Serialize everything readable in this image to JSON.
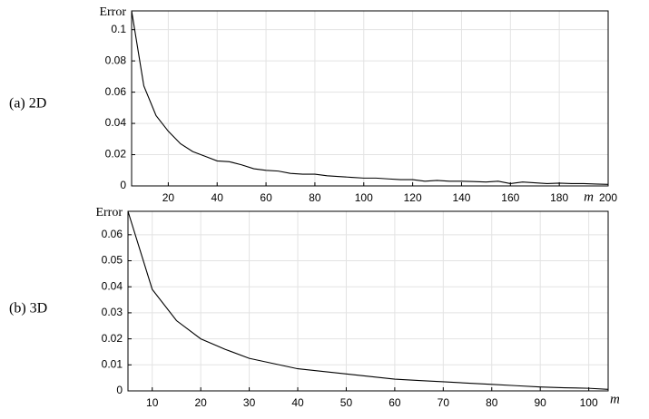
{
  "chart_data": [
    {
      "type": "line",
      "panel_label": "(a) 2D",
      "ylabel": "Error",
      "xlabel": "m",
      "grid": true,
      "color": "#000000",
      "x": [
        5,
        10,
        15,
        20,
        25,
        30,
        35,
        40,
        45,
        50,
        55,
        60,
        65,
        70,
        75,
        80,
        85,
        90,
        95,
        100,
        105,
        110,
        115,
        120,
        125,
        130,
        135,
        140,
        145,
        150,
        155,
        160,
        165,
        170,
        175,
        180,
        185,
        190,
        195,
        200
      ],
      "series": [
        {
          "values": [
            0.112,
            0.064,
            0.045,
            0.035,
            0.027,
            0.022,
            0.019,
            0.016,
            0.0155,
            0.0135,
            0.011,
            0.01,
            0.0095,
            0.008,
            0.0075,
            0.0075,
            0.0065,
            0.006,
            0.0055,
            0.005,
            0.005,
            0.0045,
            0.004,
            0.004,
            0.003,
            0.0035,
            0.003,
            0.003,
            0.0028,
            0.0025,
            0.003,
            0.0015,
            0.0025,
            0.002,
            0.0015,
            0.0018,
            0.0015,
            0.0015,
            0.0012,
            0.001
          ]
        }
      ],
      "xlim": [
        5,
        200
      ],
      "ylim": [
        0,
        0.112
      ],
      "xticks": [
        20,
        40,
        60,
        80,
        100,
        120,
        140,
        160,
        180,
        200
      ],
      "yticks": [
        0,
        0.02,
        0.04,
        0.06,
        0.08,
        0.1
      ]
    },
    {
      "type": "line",
      "panel_label": "(b) 3D",
      "ylabel": "Error",
      "xlabel": "m",
      "grid": true,
      "color": "#000000",
      "x": [
        5,
        10,
        15,
        20,
        25,
        30,
        35,
        40,
        45,
        50,
        55,
        60,
        65,
        70,
        75,
        80,
        85,
        90,
        95,
        100,
        104
      ],
      "series": [
        {
          "values": [
            0.069,
            0.039,
            0.027,
            0.02,
            0.016,
            0.0125,
            0.0105,
            0.0085,
            0.0075,
            0.0065,
            0.0055,
            0.0045,
            0.004,
            0.0035,
            0.003,
            0.0025,
            0.002,
            0.0015,
            0.0012,
            0.001,
            0.0006
          ]
        }
      ],
      "xlim": [
        5,
        104
      ],
      "ylim": [
        0,
        0.069
      ],
      "xticks": [
        10,
        20,
        30,
        40,
        50,
        60,
        70,
        80,
        90,
        100
      ],
      "yticks": [
        0,
        0.01,
        0.02,
        0.03,
        0.04,
        0.05,
        0.06
      ]
    }
  ]
}
